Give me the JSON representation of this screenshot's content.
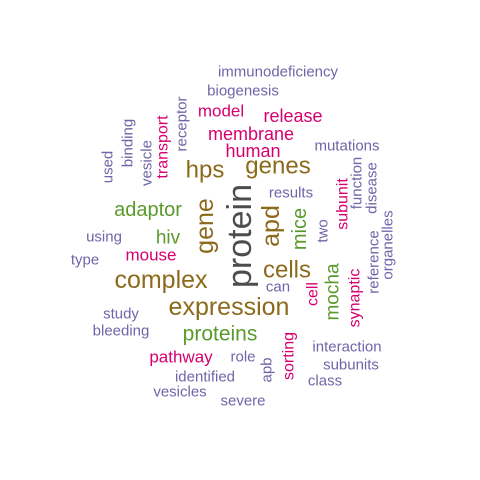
{
  "colors": {
    "dark_gray": "#4d4d4d",
    "brown": "#8c6a1c",
    "green": "#5a9a2c",
    "magenta": "#d6006f",
    "purple": "#6e66a8"
  },
  "words": [
    {
      "text": "protein",
      "color": "dark_gray"
    },
    {
      "text": "expression",
      "color": "brown"
    },
    {
      "text": "complex",
      "color": "brown"
    },
    {
      "text": "gene",
      "color": "brown"
    },
    {
      "text": "apd",
      "color": "brown"
    },
    {
      "text": "cells",
      "color": "brown"
    },
    {
      "text": "genes",
      "color": "brown"
    },
    {
      "text": "hps",
      "color": "brown"
    },
    {
      "text": "proteins",
      "color": "green"
    },
    {
      "text": "adaptor",
      "color": "green"
    },
    {
      "text": "mice",
      "color": "green"
    },
    {
      "text": "mocha",
      "color": "green"
    },
    {
      "text": "hiv",
      "color": "green"
    },
    {
      "text": "membrane",
      "color": "magenta"
    },
    {
      "text": "human",
      "color": "magenta"
    },
    {
      "text": "release",
      "color": "magenta"
    },
    {
      "text": "model",
      "color": "magenta"
    },
    {
      "text": "mouse",
      "color": "magenta"
    },
    {
      "text": "pathway",
      "color": "magenta"
    },
    {
      "text": "transport",
      "color": "magenta"
    },
    {
      "text": "sorting",
      "color": "magenta"
    },
    {
      "text": "cell",
      "color": "magenta"
    },
    {
      "text": "synaptic",
      "color": "magenta"
    },
    {
      "text": "subunit",
      "color": "magenta"
    },
    {
      "text": "immunodeficiency",
      "color": "purple"
    },
    {
      "text": "biogenesis",
      "color": "purple"
    },
    {
      "text": "mutations",
      "color": "purple"
    },
    {
      "text": "results",
      "color": "purple"
    },
    {
      "text": "receptor",
      "color": "purple"
    },
    {
      "text": "binding",
      "color": "purple"
    },
    {
      "text": "vesicle",
      "color": "purple"
    },
    {
      "text": "used",
      "color": "purple"
    },
    {
      "text": "using",
      "color": "purple"
    },
    {
      "text": "type",
      "color": "purple"
    },
    {
      "text": "study",
      "color": "purple"
    },
    {
      "text": "bleeding",
      "color": "purple"
    },
    {
      "text": "can",
      "color": "purple"
    },
    {
      "text": "two",
      "color": "purple"
    },
    {
      "text": "function",
      "color": "purple"
    },
    {
      "text": "disease",
      "color": "purple"
    },
    {
      "text": "organelles",
      "color": "purple"
    },
    {
      "text": "reference",
      "color": "purple"
    },
    {
      "text": "interaction",
      "color": "purple"
    },
    {
      "text": "subunits",
      "color": "purple"
    },
    {
      "text": "class",
      "color": "purple"
    },
    {
      "text": "role",
      "color": "purple"
    },
    {
      "text": "identified",
      "color": "purple"
    },
    {
      "text": "vesicles",
      "color": "purple"
    },
    {
      "text": "severe",
      "color": "purple"
    },
    {
      "text": "apb",
      "color": "purple"
    }
  ]
}
